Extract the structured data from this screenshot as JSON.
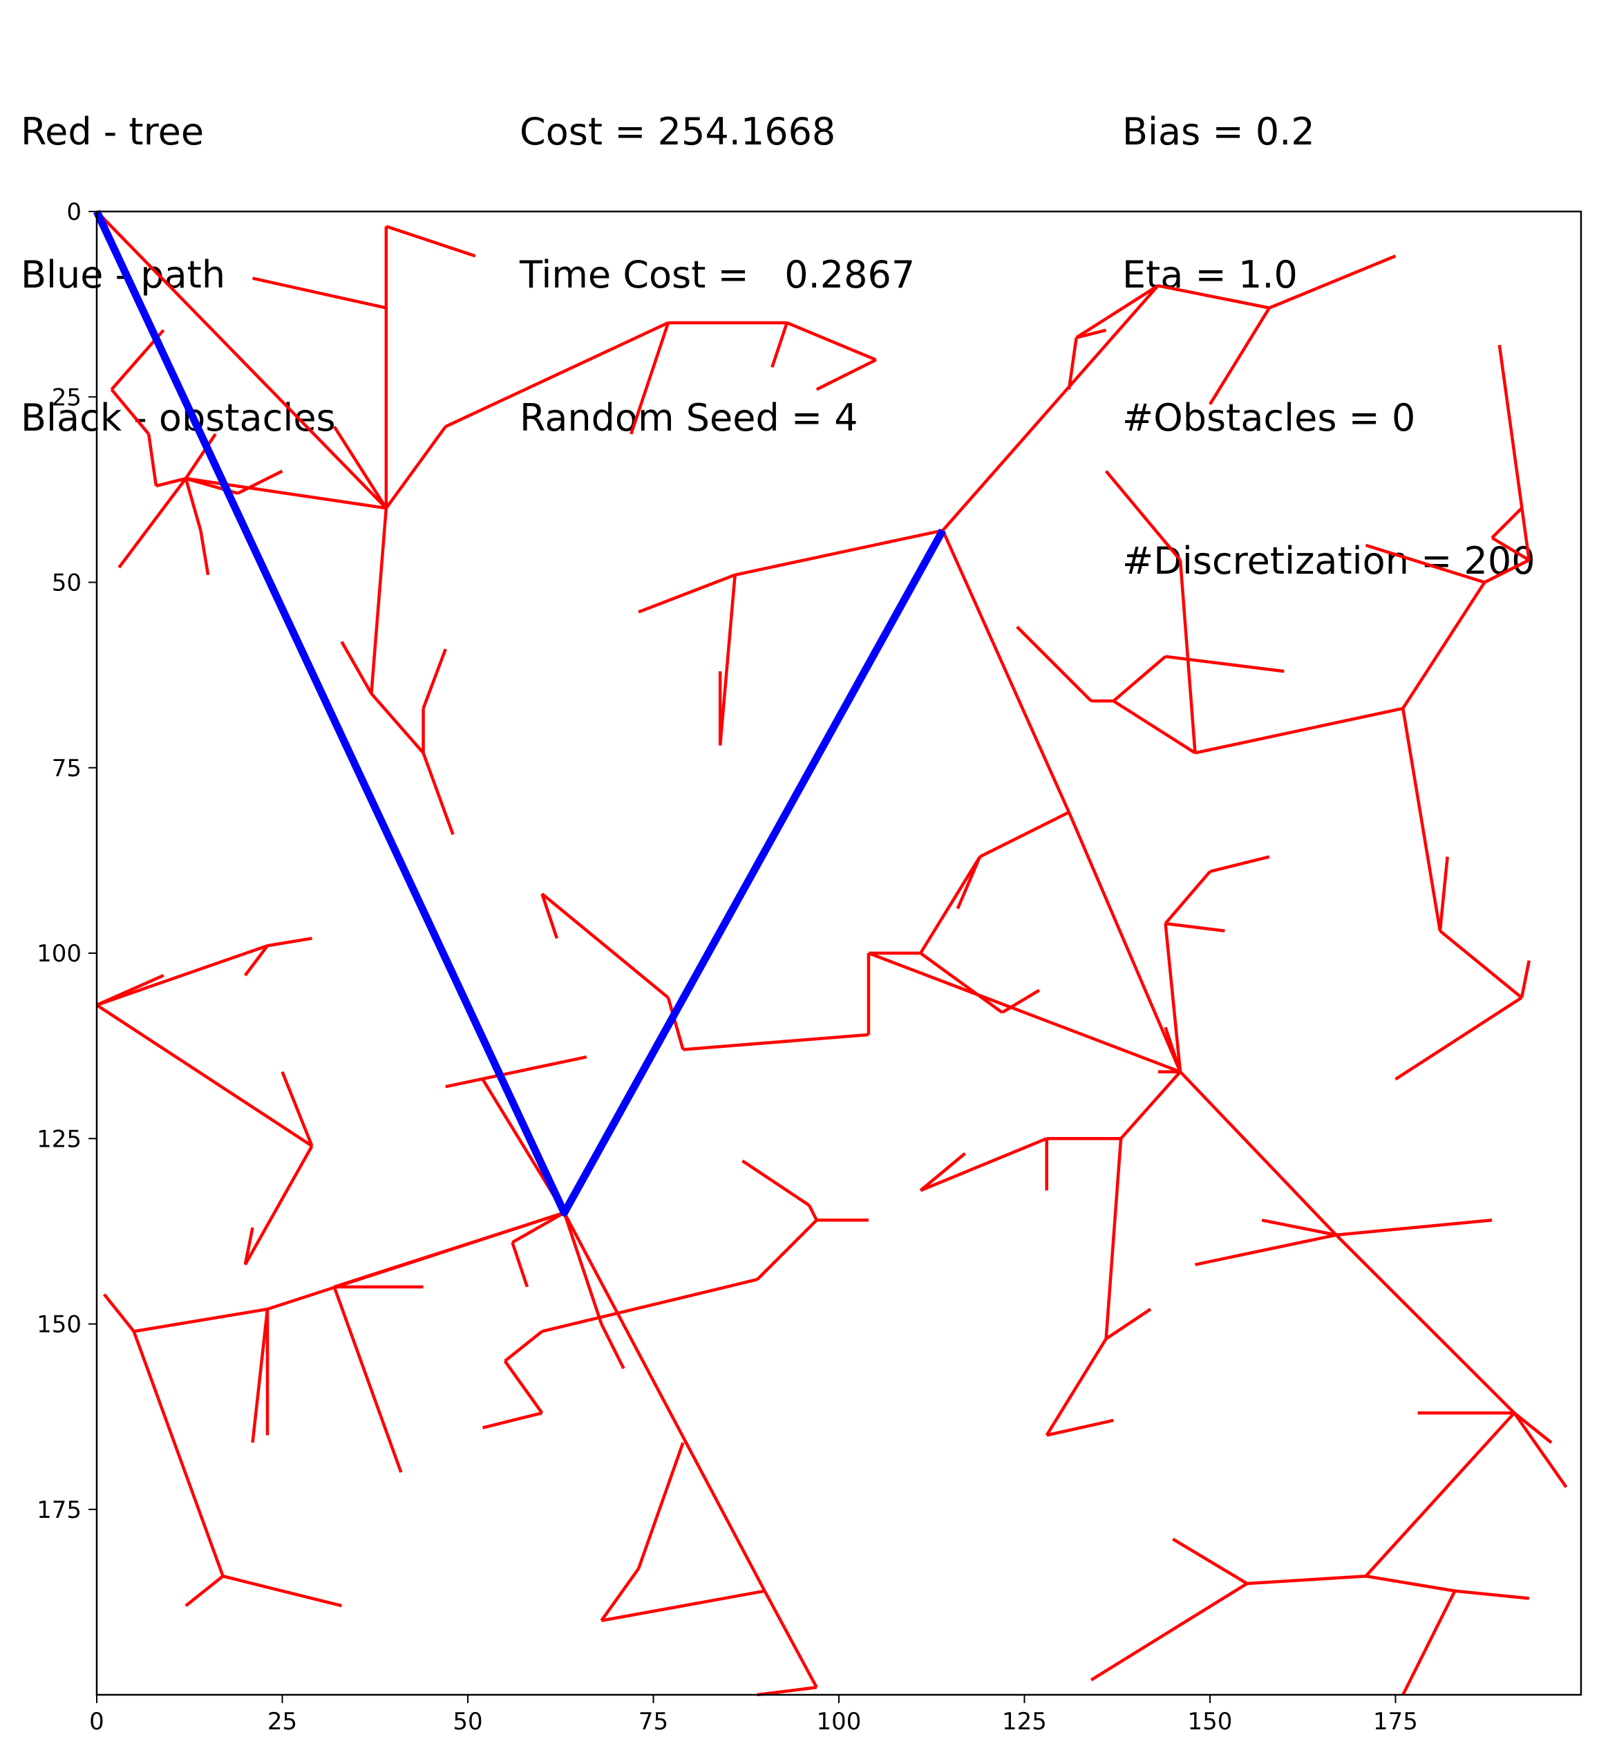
{
  "info": {
    "legend": [
      "Red - tree",
      "Blue - path",
      "Black - obstacles"
    ],
    "cost": [
      "Cost = 254.1668",
      "Time Cost =   0.2867",
      "Random Seed = 4"
    ],
    "params": [
      "Bias = 0.2",
      "Eta = 1.0",
      "#Obstacles = 0",
      "#Discretization = 200"
    ]
  },
  "chart_data": {
    "type": "line",
    "xlim": [
      0,
      200
    ],
    "ylim": [
      200,
      0
    ],
    "y_inverted": true,
    "x_ticks": [
      0,
      25,
      50,
      75,
      100,
      125,
      150,
      175
    ],
    "y_ticks": [
      0,
      25,
      50,
      75,
      100,
      125,
      150,
      175
    ],
    "grid": false,
    "colors": {
      "tree": "#ff0000",
      "path": "#0000ff"
    },
    "tree_edges": [
      [
        [
          0,
          0
        ],
        [
          39,
          40
        ]
      ],
      [
        [
          39,
          40
        ],
        [
          39,
          2
        ]
      ],
      [
        [
          39,
          2
        ],
        [
          51,
          6
        ]
      ],
      [
        [
          39,
          13
        ],
        [
          21,
          9
        ]
      ],
      [
        [
          39,
          40
        ],
        [
          32,
          29
        ]
      ],
      [
        [
          39,
          40
        ],
        [
          47,
          29
        ]
      ],
      [
        [
          47,
          29
        ],
        [
          77,
          15
        ]
      ],
      [
        [
          77,
          15
        ],
        [
          93,
          15
        ]
      ],
      [
        [
          93,
          15
        ],
        [
          105,
          20
        ]
      ],
      [
        [
          105,
          20
        ],
        [
          97,
          24
        ]
      ],
      [
        [
          93,
          15
        ],
        [
          91,
          21
        ]
      ],
      [
        [
          77,
          15
        ],
        [
          72,
          30
        ]
      ],
      [
        [
          39,
          40
        ],
        [
          37,
          65
        ]
      ],
      [
        [
          37,
          65
        ],
        [
          33,
          58
        ]
      ],
      [
        [
          37,
          65
        ],
        [
          44,
          73
        ]
      ],
      [
        [
          44,
          73
        ],
        [
          44,
          67
        ]
      ],
      [
        [
          44,
          67
        ],
        [
          47,
          59
        ]
      ],
      [
        [
          44,
          73
        ],
        [
          48,
          84
        ]
      ],
      [
        [
          39,
          40
        ],
        [
          12,
          36
        ]
      ],
      [
        [
          12,
          36
        ],
        [
          3,
          48
        ]
      ],
      [
        [
          12,
          36
        ],
        [
          16,
          30
        ]
      ],
      [
        [
          12,
          36
        ],
        [
          14,
          43
        ]
      ],
      [
        [
          14,
          43
        ],
        [
          15,
          49
        ]
      ],
      [
        [
          12,
          36
        ],
        [
          8,
          37
        ]
      ],
      [
        [
          8,
          37
        ],
        [
          7,
          30
        ]
      ],
      [
        [
          7,
          30
        ],
        [
          2,
          24
        ]
      ],
      [
        [
          2,
          24
        ],
        [
          9,
          16
        ]
      ],
      [
        [
          12,
          36
        ],
        [
          19,
          38
        ]
      ],
      [
        [
          19,
          38
        ],
        [
          25,
          35
        ]
      ],
      [
        [
          114,
          43
        ],
        [
          143,
          10
        ]
      ],
      [
        [
          143,
          10
        ],
        [
          132,
          17
        ]
      ],
      [
        [
          132,
          17
        ],
        [
          136,
          16
        ]
      ],
      [
        [
          132,
          17
        ],
        [
          131,
          24
        ]
      ],
      [
        [
          143,
          10
        ],
        [
          158,
          13
        ]
      ],
      [
        [
          158,
          13
        ],
        [
          175,
          6
        ]
      ],
      [
        [
          158,
          13
        ],
        [
          150,
          26
        ]
      ],
      [
        [
          114,
          43
        ],
        [
          86,
          49
        ]
      ],
      [
        [
          86,
          49
        ],
        [
          73,
          54
        ]
      ],
      [
        [
          86,
          49
        ],
        [
          84,
          72
        ]
      ],
      [
        [
          84,
          72
        ],
        [
          84,
          62
        ]
      ],
      [
        [
          114,
          43
        ],
        [
          131,
          81
        ]
      ],
      [
        [
          131,
          81
        ],
        [
          146,
          116
        ]
      ],
      [
        [
          146,
          116
        ],
        [
          144,
          96
        ]
      ],
      [
        [
          144,
          96
        ],
        [
          152,
          97
        ]
      ],
      [
        [
          144,
          96
        ],
        [
          150,
          89
        ]
      ],
      [
        [
          150,
          89
        ],
        [
          158,
          87
        ]
      ],
      [
        [
          146,
          116
        ],
        [
          143,
          116
        ]
      ],
      [
        [
          146,
          116
        ],
        [
          144,
          110
        ]
      ],
      [
        [
          146,
          116
        ],
        [
          104,
          100
        ]
      ],
      [
        [
          104,
          100
        ],
        [
          104,
          111
        ]
      ],
      [
        [
          104,
          111
        ],
        [
          79,
          113
        ]
      ],
      [
        [
          79,
          113
        ],
        [
          77,
          106
        ]
      ],
      [
        [
          77,
          106
        ],
        [
          60,
          92
        ]
      ],
      [
        [
          60,
          92
        ],
        [
          62,
          98
        ]
      ],
      [
        [
          104,
          100
        ],
        [
          111,
          100
        ]
      ],
      [
        [
          111,
          100
        ],
        [
          122,
          108
        ]
      ],
      [
        [
          122,
          108
        ],
        [
          127,
          105
        ]
      ],
      [
        [
          111,
          100
        ],
        [
          119,
          87
        ]
      ],
      [
        [
          119,
          87
        ],
        [
          116,
          94
        ]
      ],
      [
        [
          119,
          87
        ],
        [
          131,
          81
        ]
      ],
      [
        [
          146,
          116
        ],
        [
          138,
          125
        ]
      ],
      [
        [
          138,
          125
        ],
        [
          128,
          125
        ]
      ],
      [
        [
          128,
          125
        ],
        [
          128,
          132
        ]
      ],
      [
        [
          128,
          125
        ],
        [
          111,
          132
        ]
      ],
      [
        [
          111,
          132
        ],
        [
          117,
          127
        ]
      ],
      [
        [
          138,
          125
        ],
        [
          136,
          152
        ]
      ],
      [
        [
          136,
          152
        ],
        [
          142,
          148
        ]
      ],
      [
        [
          136,
          152
        ],
        [
          128,
          165
        ]
      ],
      [
        [
          128,
          165
        ],
        [
          137,
          163
        ]
      ],
      [
        [
          146,
          116
        ],
        [
          167,
          138
        ]
      ],
      [
        [
          167,
          138
        ],
        [
          188,
          136
        ]
      ],
      [
        [
          167,
          138
        ],
        [
          148,
          142
        ]
      ],
      [
        [
          167,
          138
        ],
        [
          157,
          136
        ]
      ],
      [
        [
          167,
          138
        ],
        [
          191,
          162
        ]
      ],
      [
        [
          191,
          162
        ],
        [
          178,
          162
        ]
      ],
      [
        [
          191,
          162
        ],
        [
          196,
          166
        ]
      ],
      [
        [
          191,
          162
        ],
        [
          198,
          172
        ]
      ],
      [
        [
          191,
          162
        ],
        [
          171,
          184
        ]
      ],
      [
        [
          171,
          184
        ],
        [
          155,
          185
        ]
      ],
      [
        [
          155,
          185
        ],
        [
          134,
          198
        ]
      ],
      [
        [
          155,
          185
        ],
        [
          145,
          179
        ]
      ],
      [
        [
          171,
          184
        ],
        [
          183,
          186
        ]
      ],
      [
        [
          183,
          186
        ],
        [
          193,
          187
        ]
      ],
      [
        [
          183,
          186
        ],
        [
          176,
          200
        ]
      ],
      [
        [
          148,
          73
        ],
        [
          146,
          47
        ]
      ],
      [
        [
          146,
          47
        ],
        [
          136,
          35
        ]
      ],
      [
        [
          148,
          73
        ],
        [
          137,
          66
        ]
      ],
      [
        [
          137,
          66
        ],
        [
          134,
          66
        ]
      ],
      [
        [
          134,
          66
        ],
        [
          124,
          56
        ]
      ],
      [
        [
          137,
          66
        ],
        [
          144,
          60
        ]
      ],
      [
        [
          144,
          60
        ],
        [
          160,
          62
        ]
      ],
      [
        [
          148,
          73
        ],
        [
          176,
          67
        ]
      ],
      [
        [
          176,
          67
        ],
        [
          187,
          50
        ]
      ],
      [
        [
          187,
          50
        ],
        [
          171,
          45
        ]
      ],
      [
        [
          187,
          50
        ],
        [
          193,
          47
        ]
      ],
      [
        [
          193,
          47
        ],
        [
          189,
          18
        ]
      ],
      [
        [
          192,
          40
        ],
        [
          188,
          44
        ]
      ],
      [
        [
          188,
          44
        ],
        [
          193,
          47
        ]
      ],
      [
        [
          176,
          67
        ],
        [
          181,
          97
        ]
      ],
      [
        [
          181,
          97
        ],
        [
          182,
          87
        ]
      ],
      [
        [
          181,
          97
        ],
        [
          192,
          106
        ]
      ],
      [
        [
          192,
          106
        ],
        [
          193,
          101
        ]
      ],
      [
        [
          192,
          106
        ],
        [
          175,
          117
        ]
      ],
      [
        [
          0,
          107
        ],
        [
          23,
          99
        ]
      ],
      [
        [
          23,
          99
        ],
        [
          29,
          98
        ]
      ],
      [
        [
          23,
          99
        ],
        [
          20,
          103
        ]
      ],
      [
        [
          0,
          107
        ],
        [
          9,
          103
        ]
      ],
      [
        [
          0,
          107
        ],
        [
          29,
          126
        ]
      ],
      [
        [
          29,
          126
        ],
        [
          25,
          116
        ]
      ],
      [
        [
          29,
          126
        ],
        [
          20,
          142
        ]
      ],
      [
        [
          20,
          142
        ],
        [
          21,
          137
        ]
      ],
      [
        [
          63,
          135
        ],
        [
          23,
          148
        ]
      ],
      [
        [
          23,
          148
        ],
        [
          23,
          165
        ]
      ],
      [
        [
          23,
          148
        ],
        [
          21,
          166
        ]
      ],
      [
        [
          23,
          148
        ],
        [
          5,
          151
        ]
      ],
      [
        [
          5,
          151
        ],
        [
          1,
          146
        ]
      ],
      [
        [
          5,
          151
        ],
        [
          17,
          184
        ]
      ],
      [
        [
          17,
          184
        ],
        [
          12,
          188
        ]
      ],
      [
        [
          17,
          184
        ],
        [
          33,
          188
        ]
      ],
      [
        [
          63,
          135
        ],
        [
          32,
          145
        ]
      ],
      [
        [
          32,
          145
        ],
        [
          44,
          145
        ]
      ],
      [
        [
          32,
          145
        ],
        [
          41,
          170
        ]
      ],
      [
        [
          63,
          135
        ],
        [
          52,
          117
        ]
      ],
      [
        [
          47,
          118
        ],
        [
          66,
          114
        ]
      ],
      [
        [
          63,
          135
        ],
        [
          56,
          139
        ]
      ],
      [
        [
          56,
          139
        ],
        [
          58,
          145
        ]
      ],
      [
        [
          63,
          135
        ],
        [
          68,
          150
        ]
      ],
      [
        [
          68,
          150
        ],
        [
          71,
          156
        ]
      ],
      [
        [
          63,
          135
        ],
        [
          90,
          186
        ]
      ],
      [
        [
          90,
          186
        ],
        [
          97,
          199
        ]
      ],
      [
        [
          97,
          199
        ],
        [
          89,
          200
        ]
      ],
      [
        [
          90,
          186
        ],
        [
          68,
          190
        ]
      ],
      [
        [
          68,
          190
        ],
        [
          73,
          183
        ]
      ],
      [
        [
          73,
          183
        ],
        [
          79,
          166
        ]
      ],
      [
        [
          89,
          144
        ],
        [
          97,
          136
        ]
      ],
      [
        [
          97,
          136
        ],
        [
          104,
          136
        ]
      ],
      [
        [
          97,
          136
        ],
        [
          96,
          134
        ]
      ],
      [
        [
          96,
          134
        ],
        [
          87,
          128
        ]
      ],
      [
        [
          89,
          144
        ],
        [
          60,
          151
        ]
      ],
      [
        [
          60,
          151
        ],
        [
          55,
          155
        ]
      ],
      [
        [
          55,
          155
        ],
        [
          60,
          162
        ]
      ],
      [
        [
          60,
          162
        ],
        [
          52,
          164
        ]
      ]
    ],
    "path": [
      [
        0,
        0
      ],
      [
        63,
        135
      ],
      [
        114,
        43
      ]
    ]
  }
}
